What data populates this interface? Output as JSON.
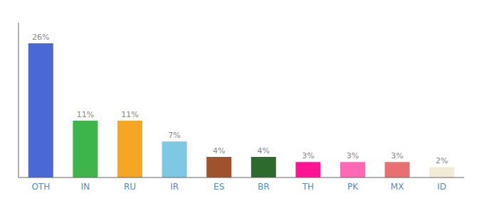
{
  "chart_data": {
    "type": "bar",
    "categories": [
      "OTH",
      "IN",
      "RU",
      "IR",
      "ES",
      "BR",
      "TH",
      "PK",
      "MX",
      "ID"
    ],
    "values": [
      26,
      11,
      11,
      7,
      4,
      4,
      3,
      3,
      3,
      2
    ],
    "colors": [
      "#4a69d4",
      "#3db54a",
      "#f5a623",
      "#7ec8e3",
      "#a0522d",
      "#2d6a2d",
      "#ff1493",
      "#ff69b4",
      "#e87070",
      "#f0ead6"
    ],
    "ylim": [
      0,
      30
    ],
    "data_labels": true,
    "value_labels": [
      "26%",
      "11%",
      "11%",
      "7%",
      "4%",
      "4%",
      "3%",
      "3%",
      "3%",
      "2%"
    ],
    "tick_labels": "x",
    "grid": false
  }
}
